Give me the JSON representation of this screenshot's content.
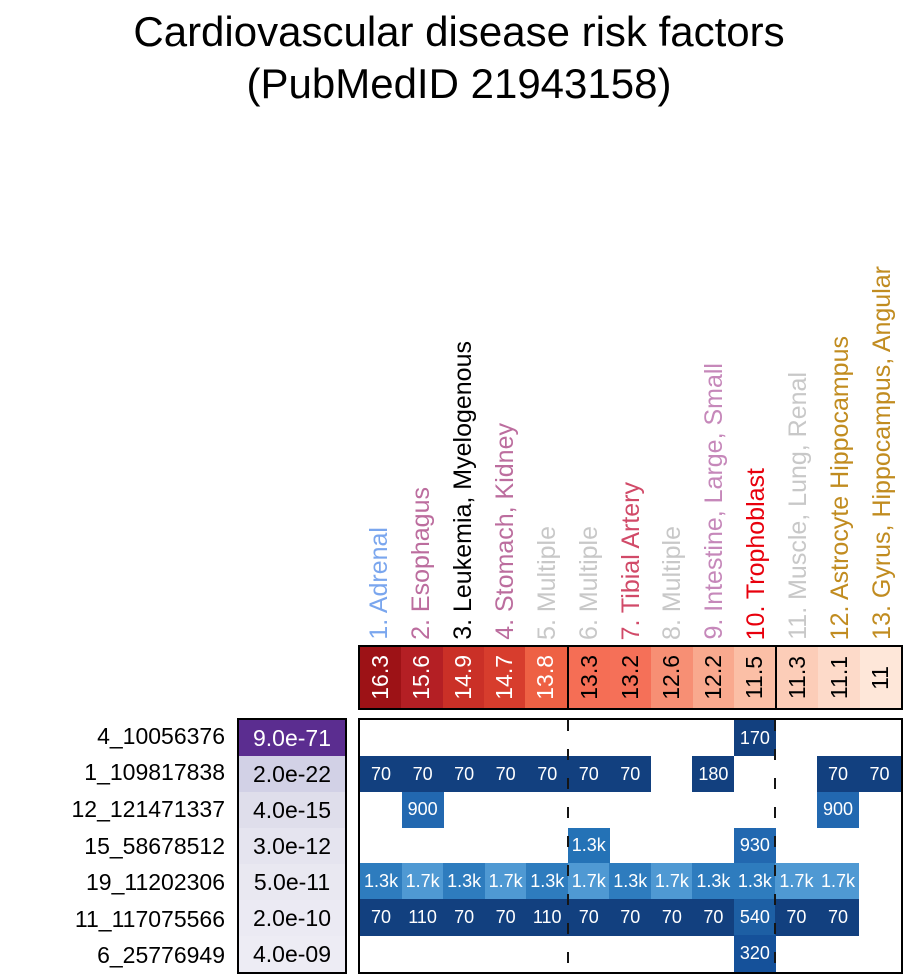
{
  "title": {
    "line1": "Cardiovascular disease risk factors",
    "line2": "(PubMedID 21943158)"
  },
  "chart_data": {
    "type": "heatmap",
    "title": "Cardiovascular disease risk factors (PubMedID 21943158)",
    "legend_position": "none",
    "columns": [
      {
        "label": "1. Adrenal",
        "label_color": "#7aa6ee",
        "score": "16.3",
        "score_bg": "#9d1216",
        "score_text": "#ffffff"
      },
      {
        "label": "2. Esophagus",
        "label_color": "#bc6d9e",
        "score": "15.6",
        "score_bg": "#b41f24",
        "score_text": "#ffffff"
      },
      {
        "label": "3. Leukemia, Myelogenous",
        "label_color": "#000000",
        "score": "14.9",
        "score_bg": "#ca3027",
        "score_text": "#ffffff"
      },
      {
        "label": "4. Stomach, Kidney",
        "label_color": "#bc6d9e",
        "score": "14.7",
        "score_bg": "#d73d2d",
        "score_text": "#ffffff"
      },
      {
        "label": "5. Multiple",
        "label_color": "#c8c8c8",
        "score": "13.8",
        "score_bg": "#ee6144",
        "score_text": "#ffffff"
      },
      {
        "label": "6. Multiple",
        "label_color": "#c8c8c8",
        "score": "13.3",
        "score_bg": "#f56e55",
        "score_text": "#000000"
      },
      {
        "label": "7. Tibial Artery",
        "label_color": "#d14a68",
        "score": "13.2",
        "score_bg": "#f57058",
        "score_text": "#000000"
      },
      {
        "label": "8. Multiple",
        "label_color": "#c8c8c8",
        "score": "12.6",
        "score_bg": "#f78f74",
        "score_text": "#000000"
      },
      {
        "label": "9. Intestine, Large, Small",
        "label_color": "#c688ba",
        "score": "12.2",
        "score_bg": "#f9a98e",
        "score_text": "#000000"
      },
      {
        "label": "10. Trophoblast",
        "label_color": "#e8000d",
        "score": "11.5",
        "score_bg": "#fbbfa6",
        "score_text": "#000000"
      },
      {
        "label": "11. Muscle, Lung, Renal",
        "label_color": "#c8c8c8",
        "score": "11.3",
        "score_bg": "#fccdb8",
        "score_text": "#000000"
      },
      {
        "label": "12. Astrocyte Hippocampus",
        "label_color": "#c18c20",
        "score": "11.1",
        "score_bg": "#fddac9",
        "score_text": "#000000"
      },
      {
        "label": "13. Gyrus, Hippocampus, Angular",
        "label_color": "#c18c20",
        "score": "11",
        "score_bg": "#fee7d9",
        "score_text": "#000000"
      }
    ],
    "group_dividers_after_columns": [
      5,
      10
    ],
    "cell_value_color": "#ffffff",
    "rows": [
      {
        "label": "4_10056376",
        "pvalue": "9.0e-71",
        "pvalue_bg": "#5b2d90",
        "pvalue_text": "#ffffff",
        "cells": [
          {
            "col": 10,
            "value": "170",
            "bg": "#12407f"
          }
        ]
      },
      {
        "label": "1_109817838",
        "pvalue": "2.0e-22",
        "pvalue_bg": "#d2d1e6",
        "pvalue_text": "#000000",
        "cells": [
          {
            "col": 1,
            "value": "70",
            "bg": "#12407f"
          },
          {
            "col": 2,
            "value": "70",
            "bg": "#12407f"
          },
          {
            "col": 3,
            "value": "70",
            "bg": "#12407f"
          },
          {
            "col": 4,
            "value": "70",
            "bg": "#12407f"
          },
          {
            "col": 5,
            "value": "70",
            "bg": "#12407f"
          },
          {
            "col": 6,
            "value": "70",
            "bg": "#12407f"
          },
          {
            "col": 7,
            "value": "70",
            "bg": "#12407f"
          },
          {
            "col": 9,
            "value": "180",
            "bg": "#12407f"
          },
          {
            "col": 12,
            "value": "70",
            "bg": "#12407f"
          },
          {
            "col": 13,
            "value": "70",
            "bg": "#12407f"
          }
        ]
      },
      {
        "label": "12_121471337",
        "pvalue": "4.0e-15",
        "pvalue_bg": "#dfdeeb",
        "pvalue_text": "#000000",
        "cells": [
          {
            "col": 2,
            "value": "900",
            "bg": "#2268b0"
          },
          {
            "col": 12,
            "value": "900",
            "bg": "#2268b0"
          }
        ]
      },
      {
        "label": "15_58678512",
        "pvalue": "3.0e-12",
        "pvalue_bg": "#e5e4ef",
        "pvalue_text": "#000000",
        "cells": [
          {
            "col": 6,
            "value": "1.3k",
            "bg": "#2472b6"
          },
          {
            "col": 10,
            "value": "930",
            "bg": "#2268b0"
          }
        ]
      },
      {
        "label": "19_11202306",
        "pvalue": "5.0e-11",
        "pvalue_bg": "#e9e8f1",
        "pvalue_text": "#000000",
        "cells": [
          {
            "col": 1,
            "value": "1.3k",
            "bg": "#2e7cbe"
          },
          {
            "col": 2,
            "value": "1.7k",
            "bg": "#4f99d3"
          },
          {
            "col": 3,
            "value": "1.3k",
            "bg": "#2e7cbe"
          },
          {
            "col": 4,
            "value": "1.7k",
            "bg": "#4f99d3"
          },
          {
            "col": 5,
            "value": "1.3k",
            "bg": "#2e7cbe"
          },
          {
            "col": 6,
            "value": "1.7k",
            "bg": "#4f99d3"
          },
          {
            "col": 7,
            "value": "1.3k",
            "bg": "#2e7cbe"
          },
          {
            "col": 8,
            "value": "1.7k",
            "bg": "#4f99d3"
          },
          {
            "col": 9,
            "value": "1.3k",
            "bg": "#2e7cbe"
          },
          {
            "col": 10,
            "value": "1.3k",
            "bg": "#2e7cbe"
          },
          {
            "col": 11,
            "value": "1.7k",
            "bg": "#4f99d3"
          },
          {
            "col": 12,
            "value": "1.7k",
            "bg": "#4f99d3"
          }
        ]
      },
      {
        "label": "11_117075566",
        "pvalue": "2.0e-10",
        "pvalue_bg": "#ebeaf3",
        "pvalue_text": "#000000",
        "cells": [
          {
            "col": 1,
            "value": "70",
            "bg": "#12407f"
          },
          {
            "col": 2,
            "value": "110",
            "bg": "#12407f"
          },
          {
            "col": 3,
            "value": "70",
            "bg": "#12407f"
          },
          {
            "col": 4,
            "value": "70",
            "bg": "#12407f"
          },
          {
            "col": 5,
            "value": "110",
            "bg": "#12407f"
          },
          {
            "col": 6,
            "value": "70",
            "bg": "#12407f"
          },
          {
            "col": 7,
            "value": "70",
            "bg": "#12407f"
          },
          {
            "col": 8,
            "value": "70",
            "bg": "#12407f"
          },
          {
            "col": 9,
            "value": "70",
            "bg": "#12407f"
          },
          {
            "col": 10,
            "value": "540",
            "bg": "#1d5fa4"
          },
          {
            "col": 11,
            "value": "70",
            "bg": "#12407f"
          },
          {
            "col": 12,
            "value": "70",
            "bg": "#12407f"
          }
        ]
      },
      {
        "label": "6_25776949",
        "pvalue": "4.0e-09",
        "pvalue_bg": "#edecf4",
        "pvalue_text": "#000000",
        "cells": [
          {
            "col": 10,
            "value": "320",
            "bg": "#15519a"
          }
        ]
      }
    ]
  }
}
